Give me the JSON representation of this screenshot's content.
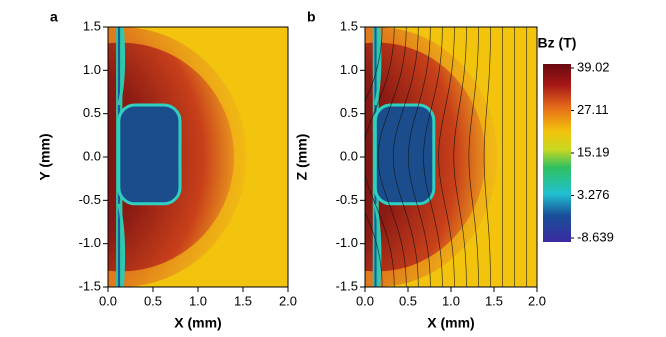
{
  "chart_data": [
    {
      "type": "heatmap",
      "panel_label": "a",
      "xlabel": "X (mm)",
      "ylabel": "Y (mm)",
      "xlim": [
        0,
        2
      ],
      "ylim": [
        -1.5,
        1.5
      ],
      "xticks": [
        {
          "value": 0,
          "label": "0.0"
        },
        0.5,
        {
          "value": 1,
          "label": "1.0"
        },
        1.5,
        {
          "value": 2,
          "label": "2.0"
        }
      ],
      "yticks": [
        -1.5,
        {
          "value": -1,
          "label": "-1.0"
        },
        -0.5,
        {
          "value": 0,
          "label": "0.0"
        },
        0.5,
        {
          "value": 1,
          "label": "1.0"
        },
        1.5
      ]
    },
    {
      "type": "heatmap",
      "panel_label": "b",
      "xlabel": "X (mm)",
      "ylabel": "Z (mm)",
      "xlim": [
        0,
        2
      ],
      "ylim": [
        -1.5,
        1.5
      ],
      "xticks": [
        {
          "value": 0,
          "label": "0.0"
        },
        0.5,
        {
          "value": 1,
          "label": "1.0"
        },
        1.5,
        {
          "value": 2,
          "label": "2.0"
        }
      ],
      "yticks": [
        -1.5,
        {
          "value": -1,
          "label": "-1.0"
        },
        -0.5,
        {
          "value": 0,
          "label": "0.0"
        },
        0.5,
        {
          "value": 1,
          "label": "1.0"
        },
        1.5
      ],
      "field_lines": true,
      "colorbar": {
        "title": "Bz (T)",
        "lim": [
          -8.639,
          39.02
        ],
        "ticks": [
          -8.639,
          3.276,
          15.19,
          27.11,
          39.02
        ]
      }
    }
  ]
}
